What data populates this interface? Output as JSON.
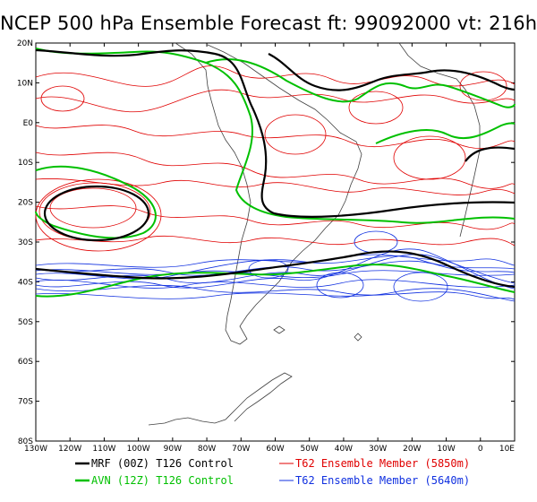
{
  "title": "NCEP 500 hPa Ensemble Forecast  ft: 99092000 vt: 216h",
  "lat_labels": [
    "20N",
    "10N",
    "E0",
    "10S",
    "20S",
    "30S",
    "40S",
    "50S",
    "60S",
    "70S",
    "80S"
  ],
  "lon_labels": [
    "130W",
    "120W",
    "110W",
    "100W",
    "90W",
    "80W",
    "70W",
    "60W",
    "50W",
    "40W",
    "30W",
    "20W",
    "10W",
    "0",
    "10E"
  ],
  "legend": [
    {
      "label": "MRF (00Z) T126 Control",
      "color": "#000000"
    },
    {
      "label": "T62 Ensemble Member (5850m)",
      "color": "#e00000"
    },
    {
      "label": "AVN (12Z) T126 Control",
      "color": "#00c000"
    },
    {
      "label": "T62 Ensemble Member (5640m)",
      "color": "#1030e0"
    }
  ],
  "colors": {
    "mrf": "#000000",
    "avn": "#00c000",
    "member_5850": "#e00000",
    "member_5640": "#1030e0"
  }
}
